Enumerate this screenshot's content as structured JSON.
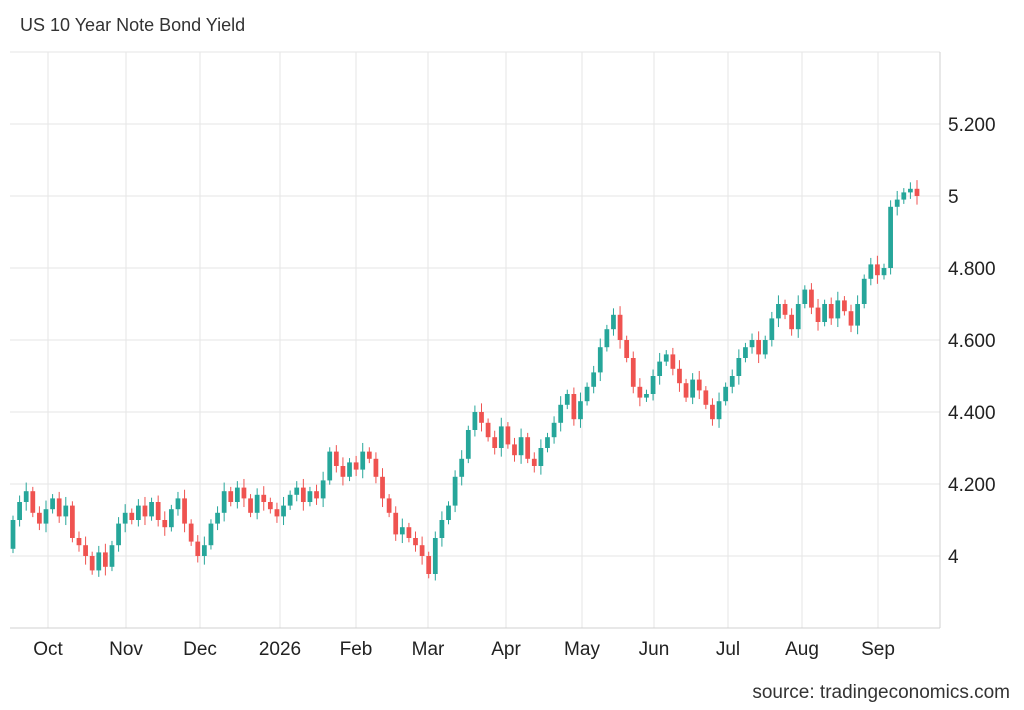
{
  "chart_data": {
    "type": "candlestick",
    "title": "US 10 Year Note Bond Yield",
    "source": "source: tradingeconomics.com",
    "xlabel": "",
    "ylabel": "",
    "ylim": [
      3.8,
      5.4
    ],
    "yticks": [
      {
        "value": 4.0,
        "label": "4"
      },
      {
        "value": 4.2,
        "label": "4.200"
      },
      {
        "value": 4.4,
        "label": "4.400"
      },
      {
        "value": 4.6,
        "label": "4.600"
      },
      {
        "value": 4.8,
        "label": "4.800"
      },
      {
        "value": 5.0,
        "label": "5"
      },
      {
        "value": 5.2,
        "label": "5.200"
      }
    ],
    "xticks": [
      "Oct",
      "Nov",
      "Dec",
      "2026",
      "Feb",
      "Mar",
      "Apr",
      "May",
      "Jun",
      "Jul",
      "Aug",
      "Sep"
    ],
    "grid": true,
    "colors": {
      "up": "#26a69a",
      "down": "#ef5350",
      "grid": "#e6e6e6",
      "axis": "#d0d0d0"
    },
    "series": [
      {
        "values": [
          [
            4.02,
            4.1
          ],
          [
            4.1,
            4.15
          ],
          [
            4.15,
            4.18
          ],
          [
            4.18,
            4.12
          ],
          [
            4.12,
            4.09
          ],
          [
            4.09,
            4.13
          ],
          [
            4.13,
            4.16
          ],
          [
            4.16,
            4.11
          ],
          [
            4.11,
            4.14
          ],
          [
            4.14,
            4.05
          ],
          [
            4.05,
            4.03
          ],
          [
            4.03,
            4.0
          ],
          [
            4.0,
            3.96
          ],
          [
            3.96,
            4.01
          ],
          [
            4.01,
            3.97
          ],
          [
            3.97,
            4.03
          ],
          [
            4.03,
            4.09
          ],
          [
            4.09,
            4.12
          ],
          [
            4.12,
            4.1
          ],
          [
            4.1,
            4.14
          ],
          [
            4.14,
            4.11
          ],
          [
            4.11,
            4.15
          ],
          [
            4.15,
            4.1
          ],
          [
            4.1,
            4.08
          ],
          [
            4.08,
            4.13
          ],
          [
            4.13,
            4.16
          ],
          [
            4.16,
            4.09
          ],
          [
            4.09,
            4.04
          ],
          [
            4.04,
            4.0
          ],
          [
            4.0,
            4.03
          ],
          [
            4.03,
            4.09
          ],
          [
            4.09,
            4.12
          ],
          [
            4.12,
            4.18
          ],
          [
            4.18,
            4.15
          ],
          [
            4.15,
            4.19
          ],
          [
            4.19,
            4.16
          ],
          [
            4.16,
            4.12
          ],
          [
            4.12,
            4.17
          ],
          [
            4.17,
            4.15
          ],
          [
            4.15,
            4.13
          ],
          [
            4.13,
            4.11
          ],
          [
            4.11,
            4.14
          ],
          [
            4.14,
            4.17
          ],
          [
            4.17,
            4.19
          ],
          [
            4.19,
            4.15
          ],
          [
            4.15,
            4.18
          ],
          [
            4.18,
            4.16
          ],
          [
            4.16,
            4.21
          ],
          [
            4.21,
            4.29
          ],
          [
            4.29,
            4.25
          ],
          [
            4.25,
            4.22
          ],
          [
            4.22,
            4.26
          ],
          [
            4.26,
            4.24
          ],
          [
            4.24,
            4.29
          ],
          [
            4.29,
            4.27
          ],
          [
            4.27,
            4.22
          ],
          [
            4.22,
            4.16
          ],
          [
            4.16,
            4.12
          ],
          [
            4.12,
            4.06
          ],
          [
            4.06,
            4.08
          ],
          [
            4.08,
            4.05
          ],
          [
            4.05,
            4.03
          ],
          [
            4.03,
            4.0
          ],
          [
            4.0,
            3.95
          ],
          [
            3.95,
            4.05
          ],
          [
            4.05,
            4.1
          ],
          [
            4.1,
            4.14
          ],
          [
            4.14,
            4.22
          ],
          [
            4.22,
            4.27
          ],
          [
            4.27,
            4.35
          ],
          [
            4.35,
            4.4
          ],
          [
            4.4,
            4.37
          ],
          [
            4.37,
            4.33
          ],
          [
            4.33,
            4.3
          ],
          [
            4.3,
            4.36
          ],
          [
            4.36,
            4.31
          ],
          [
            4.31,
            4.28
          ],
          [
            4.28,
            4.33
          ],
          [
            4.33,
            4.27
          ],
          [
            4.27,
            4.25
          ],
          [
            4.25,
            4.3
          ],
          [
            4.3,
            4.33
          ],
          [
            4.33,
            4.37
          ],
          [
            4.37,
            4.42
          ],
          [
            4.42,
            4.45
          ],
          [
            4.45,
            4.38
          ],
          [
            4.38,
            4.43
          ],
          [
            4.43,
            4.47
          ],
          [
            4.47,
            4.51
          ],
          [
            4.51,
            4.58
          ],
          [
            4.58,
            4.63
          ],
          [
            4.63,
            4.67
          ],
          [
            4.67,
            4.6
          ],
          [
            4.6,
            4.55
          ],
          [
            4.55,
            4.47
          ],
          [
            4.47,
            4.44
          ],
          [
            4.44,
            4.45
          ],
          [
            4.45,
            4.5
          ],
          [
            4.5,
            4.54
          ],
          [
            4.54,
            4.56
          ],
          [
            4.56,
            4.52
          ],
          [
            4.52,
            4.48
          ],
          [
            4.48,
            4.44
          ],
          [
            4.44,
            4.49
          ],
          [
            4.49,
            4.46
          ],
          [
            4.46,
            4.42
          ],
          [
            4.42,
            4.38
          ],
          [
            4.38,
            4.43
          ],
          [
            4.43,
            4.47
          ],
          [
            4.47,
            4.5
          ],
          [
            4.5,
            4.55
          ],
          [
            4.55,
            4.58
          ],
          [
            4.58,
            4.6
          ],
          [
            4.6,
            4.56
          ],
          [
            4.56,
            4.6
          ],
          [
            4.6,
            4.66
          ],
          [
            4.66,
            4.7
          ],
          [
            4.7,
            4.67
          ],
          [
            4.67,
            4.63
          ],
          [
            4.63,
            4.7
          ],
          [
            4.7,
            4.74
          ],
          [
            4.74,
            4.69
          ],
          [
            4.69,
            4.65
          ],
          [
            4.65,
            4.7
          ],
          [
            4.7,
            4.66
          ],
          [
            4.66,
            4.71
          ],
          [
            4.71,
            4.68
          ],
          [
            4.68,
            4.64
          ],
          [
            4.64,
            4.7
          ],
          [
            4.7,
            4.77
          ],
          [
            4.77,
            4.81
          ],
          [
            4.81,
            4.78
          ],
          [
            4.78,
            4.8
          ],
          [
            4.8,
            4.97
          ],
          [
            4.97,
            4.99
          ],
          [
            4.99,
            5.01
          ],
          [
            5.01,
            5.02
          ],
          [
            5.02,
            5.0
          ]
        ]
      }
    ]
  }
}
